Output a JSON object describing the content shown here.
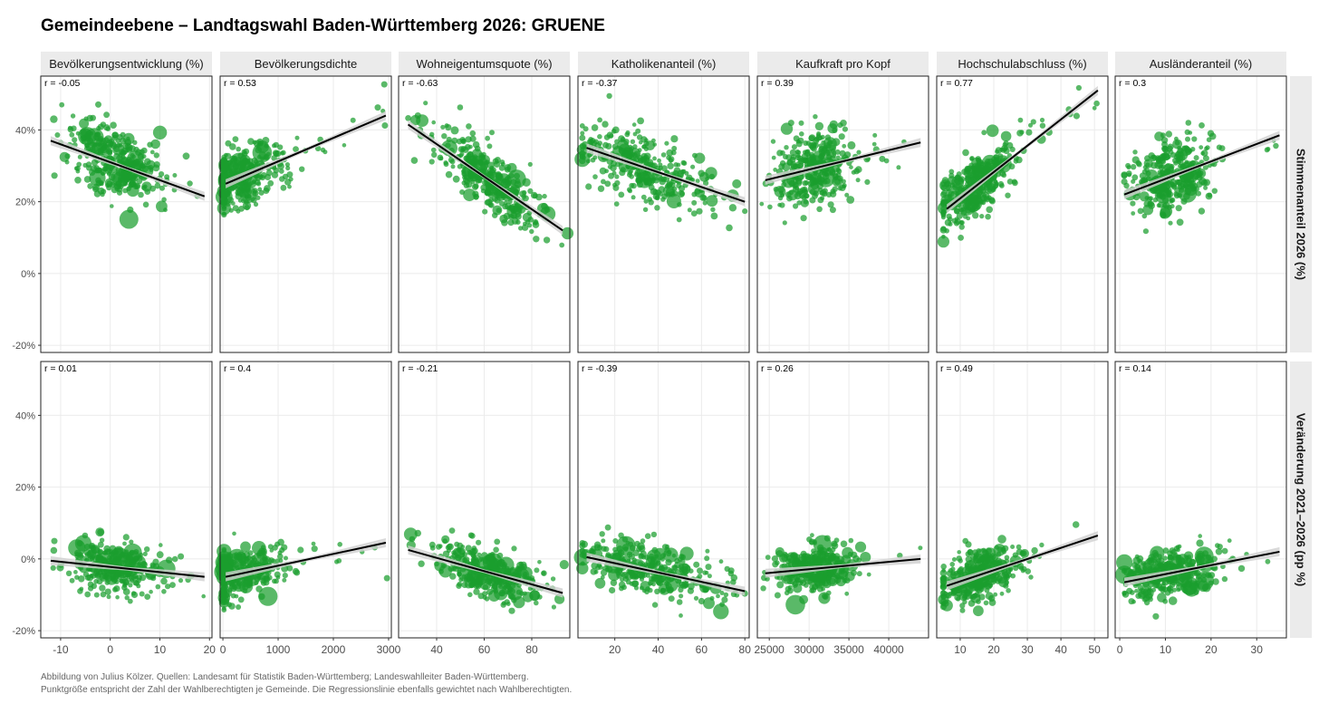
{
  "title": "Gemeindeebene – Landtagswahl Baden-Württemberg 2026: GRUENE",
  "caption": {
    "line1": "Abbildung von Julius Kölzer. Quellen: Landesamt für Statistik Baden-Württemberg; Landeswahlleiter Baden-Württemberg.",
    "line2": "Punktgröße entspricht der Zahl der Wahlberechtigten je Gemeinde. Die Regressionslinie ebenfalls gewichtet nach Wahlberechtigten."
  },
  "colors": {
    "points": "#1a9e2e",
    "line": "#000000",
    "ci": "#cfcfcf",
    "strip": "#ebebeb",
    "grid": "#ebebeb"
  },
  "chart_data": {
    "type": "scatter",
    "y_unit": "%",
    "rows": [
      {
        "label": "Stimmenanteil 2026 (%)",
        "ylim": [
          -22,
          55
        ],
        "yticks": [
          40,
          20,
          0,
          -20
        ],
        "ytick_labels": [
          "40%",
          "20%",
          "0%",
          "-20%"
        ]
      },
      {
        "label": "Veränderung 2021–2026 (pp %)",
        "ylim": [
          -22,
          55
        ],
        "yticks": [
          40,
          20,
          0,
          -20
        ],
        "ytick_labels": [
          "40%",
          "20%",
          "0%",
          "-20%"
        ]
      }
    ],
    "panels": [
      {
        "name": "Bevölkerungsentwicklung (%)",
        "xlim": [
          -14,
          20.5
        ],
        "xticks": [
          -10,
          0,
          10,
          20
        ],
        "xtick_labels": [
          "-10",
          "0",
          "10",
          "20"
        ],
        "cloud": {
          "cx": 1,
          "sx": 4.5,
          "xmin": -13,
          "xmax": 19
        },
        "r": [
          "r = -0.05",
          "r = 0.01"
        ],
        "fits": [
          {
            "x": [
              -12,
              19
            ],
            "y": [
              37,
              21.5
            ]
          },
          {
            "x": [
              -12,
              19
            ],
            "y": [
              -0.5,
              -5
            ]
          }
        ],
        "clouds": [
          {
            "cy": 26,
            "sy": 6
          },
          {
            "cy": -4,
            "sy": 4
          }
        ]
      },
      {
        "name": "Bevölkerungsdichte",
        "xlim": [
          -50,
          3050
        ],
        "xticks": [
          0,
          1000,
          2000,
          3000
        ],
        "xtick_labels": [
          "0",
          "1000",
          "2000",
          "3000"
        ],
        "cloud": {
          "cx": 300,
          "sx": 400,
          "xmin": 20,
          "xmax": 3000
        },
        "r": [
          "r = 0.53",
          "r = 0.4"
        ],
        "fits": [
          {
            "x": [
              50,
              2950
            ],
            "y": [
              25,
              44
            ]
          },
          {
            "x": [
              50,
              2950
            ],
            "y": [
              -5,
              4.5
            ]
          }
        ],
        "clouds": [
          {
            "cy": 26,
            "sy": 5
          },
          {
            "cy": -4,
            "sy": 4
          }
        ]
      },
      {
        "name": "Wohneigentumsquote (%)",
        "xlim": [
          24,
          96
        ],
        "xticks": [
          40,
          60,
          80
        ],
        "xtick_labels": [
          "40",
          "60",
          "80"
        ],
        "cloud": {
          "cx": 62,
          "sx": 11,
          "xmin": 26,
          "xmax": 95
        },
        "r": [
          "r = -0.63",
          "r = -0.21"
        ],
        "fits": [
          {
            "x": [
              28,
              93
            ],
            "y": [
              41.5,
              12
            ]
          },
          {
            "x": [
              28,
              93
            ],
            "y": [
              2.5,
              -9.5
            ]
          }
        ],
        "clouds": [
          {
            "cy": 26,
            "sy": 5
          },
          {
            "cy": -4,
            "sy": 4
          }
        ]
      },
      {
        "name": "Katholikenanteil (%)",
        "xlim": [
          3,
          82
        ],
        "xticks": [
          20,
          40,
          60,
          80
        ],
        "xtick_labels": [
          "20",
          "40",
          "60",
          "80"
        ],
        "cloud": {
          "cx": 35,
          "sx": 17,
          "xmin": 5,
          "xmax": 80
        },
        "r": [
          "r = -0.37",
          "r = -0.39"
        ],
        "fits": [
          {
            "x": [
              7,
              80
            ],
            "y": [
              35,
              20
            ]
          },
          {
            "x": [
              7,
              80
            ],
            "y": [
              0.5,
              -9
            ]
          }
        ],
        "clouds": [
          {
            "cy": 26,
            "sy": 5.5
          },
          {
            "cy": -4,
            "sy": 4
          }
        ]
      },
      {
        "name": "Kaufkraft pro Kopf",
        "xlim": [
          23500,
          45000
        ],
        "xticks": [
          25000,
          30000,
          35000,
          40000
        ],
        "xtick_labels": [
          "25000",
          "30000",
          "35000",
          "40000"
        ],
        "cloud": {
          "cx": 30500,
          "sx": 2500,
          "xmin": 24000,
          "xmax": 44000
        },
        "r": [
          "r = 0.39",
          "r = 0.26"
        ],
        "fits": [
          {
            "x": [
              24500,
              44000
            ],
            "y": [
              26,
              36.5
            ]
          },
          {
            "x": [
              24500,
              44000
            ],
            "y": [
              -4,
              0
            ]
          }
        ],
        "clouds": [
          {
            "cy": 26,
            "sy": 6
          },
          {
            "cy": -4,
            "sy": 4
          }
        ]
      },
      {
        "name": "Hochschulabschluss (%)",
        "xlim": [
          3,
          54
        ],
        "xticks": [
          10,
          20,
          30,
          40,
          50
        ],
        "xtick_labels": [
          "10",
          "20",
          "30",
          "40",
          "50"
        ],
        "cloud": {
          "cx": 15,
          "sx": 6,
          "xmin": 5,
          "xmax": 52
        },
        "r": [
          "r = 0.77",
          "r = 0.49"
        ],
        "fits": [
          {
            "x": [
              6,
              51
            ],
            "y": [
              18,
              51
            ]
          },
          {
            "x": [
              6,
              51
            ],
            "y": [
              -7.5,
              6.5
            ]
          }
        ],
        "clouds": [
          {
            "cy": 26,
            "sy": 5
          },
          {
            "cy": -4,
            "sy": 4
          }
        ]
      },
      {
        "name": "Ausländeranteil (%)",
        "xlim": [
          -1,
          36.5
        ],
        "xticks": [
          0,
          10,
          20,
          30
        ],
        "xtick_labels": [
          "0",
          "10",
          "20",
          "30"
        ],
        "cloud": {
          "cx": 11,
          "sx": 5,
          "xmin": 1,
          "xmax": 35
        },
        "r": [
          "r = 0.3",
          "r = 0.14"
        ],
        "fits": [
          {
            "x": [
              1,
              35
            ],
            "y": [
              22,
              38.5
            ]
          },
          {
            "x": [
              1,
              35
            ],
            "y": [
              -6.5,
              2
            ]
          }
        ],
        "clouds": [
          {
            "cy": 26,
            "sy": 6
          },
          {
            "cy": -4,
            "sy": 4
          }
        ]
      }
    ]
  }
}
